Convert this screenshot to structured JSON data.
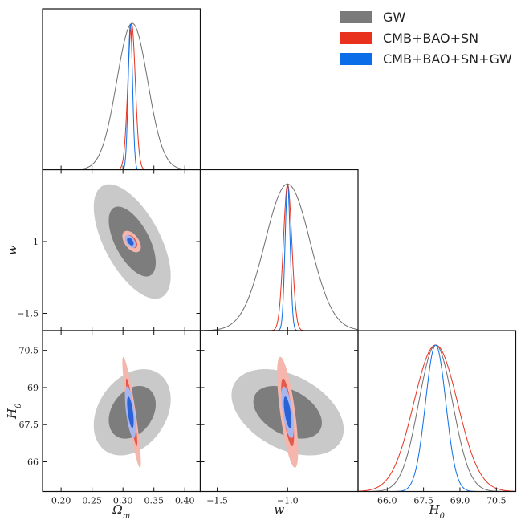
{
  "chart_data": {
    "type": "triangle-corner-plot",
    "parameters": [
      {
        "key": "om",
        "label": "Ωm",
        "symbol": "Ω",
        "subscript": "m",
        "range": [
          0.17,
          0.425
        ],
        "ticks": [
          0.2,
          0.25,
          0.3,
          0.35,
          0.4
        ],
        "tick_labels": [
          "0.20",
          "0.25",
          "0.30",
          "0.35",
          "0.40"
        ]
      },
      {
        "key": "w",
        "label": "w",
        "symbol": "w",
        "subscript": "",
        "range": [
          -1.62,
          -0.5
        ],
        "ticks": [
          -1.5,
          -1.0
        ],
        "tick_labels": [
          "−1.5",
          "−1.0"
        ],
        "y_ticks": [
          -1.0,
          -1.5
        ],
        "y_tick_labels": [
          "−1",
          "−1.5"
        ]
      },
      {
        "key": "h0",
        "label": "H0",
        "symbol": "H",
        "subscript": "0",
        "range": [
          64.8,
          71.3
        ],
        "ticks": [
          66.0,
          67.5,
          69.0,
          70.5
        ],
        "tick_labels": [
          "66.0",
          "67.5",
          "69.0",
          "70.5"
        ],
        "y_ticks": [
          66.0,
          67.5,
          69.0,
          70.5
        ],
        "y_tick_labels": [
          "66",
          "67.5",
          "69",
          "70.5"
        ]
      }
    ],
    "series": [
      {
        "name": "GW",
        "color": "#7a7a7a",
        "line_color": "#6e6e6e",
        "fill_inner": "#7d7d7d",
        "fill_outer": "#c9c9c9",
        "mean": [
          0.315,
          -1.0,
          68.0
        ],
        "sigma": [
          0.025,
          0.16,
          0.7
        ],
        "rho": {
          "om_w": -0.6,
          "om_h0": 0.3,
          "w_h0": -0.4
        }
      },
      {
        "name": "CMB+BAO+SN",
        "color": "#e8321e",
        "line_color": "#e8321e",
        "fill_inner": "#e25a4c",
        "fill_outer": "#f4b6ad",
        "mean": [
          0.314,
          -1.0,
          68.0
        ],
        "sigma": [
          0.006,
          0.03,
          0.9
        ],
        "rho": {
          "om_w": -0.5,
          "om_h0": -0.9,
          "w_h0": -0.7
        }
      },
      {
        "name": "CMB+BAO+SN+GW",
        "color": "#0b6ee8",
        "line_color": "#0b6ee8",
        "fill_inner": "#2b63d6",
        "fill_outer": "#a9b6ee",
        "mean": [
          0.312,
          -1.0,
          68.0
        ],
        "sigma": [
          0.0035,
          0.018,
          0.42
        ],
        "rho": {
          "om_w": -0.5,
          "om_h0": -0.6,
          "w_h0": -0.6
        }
      }
    ],
    "legend_position": "top-right"
  }
}
